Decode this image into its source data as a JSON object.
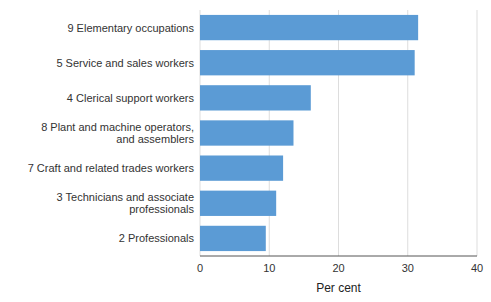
{
  "chart_data": {
    "type": "bar",
    "orientation": "horizontal",
    "categories": [
      "2 Professionals",
      "3 Technicians and associate\nprofessionals",
      "7 Craft and related trades workers",
      "8 Plant and machine operators,\nand assemblers",
      "4 Clerical support workers",
      "5 Service and sales workers",
      "9 Elementary occupations"
    ],
    "values": [
      9.5,
      11.0,
      12.0,
      13.5,
      16.0,
      31.0,
      31.5
    ],
    "color": "#5B9BD5",
    "xlabel": "Per cent",
    "xlim": [
      0,
      40
    ],
    "xticks": [
      0,
      10,
      20,
      30,
      40
    ],
    "grid": true
  }
}
